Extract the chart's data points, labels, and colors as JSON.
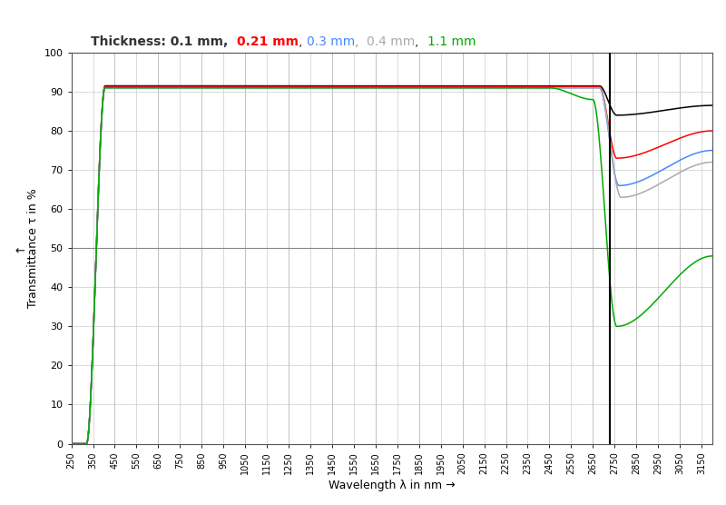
{
  "title_parts": [
    {
      "text": "Thickness: 0.1 mm,  ",
      "color": "#333333",
      "bold": true
    },
    {
      "text": "0.21 mm",
      "color": "#ff0000",
      "bold": true
    },
    {
      "text": ", ",
      "color": "#333333",
      "bold": false
    },
    {
      "text": "0.3 mm",
      "color": "#4488ff",
      "bold": false
    },
    {
      "text": ",  ",
      "color": "#999999",
      "bold": false
    },
    {
      "text": "0.4 mm",
      "color": "#aaaaaa",
      "bold": false
    },
    {
      "text": ",  ",
      "color": "#333333",
      "bold": false
    },
    {
      "text": "1.1 mm",
      "color": "#00aa00",
      "bold": false
    }
  ],
  "xlabel": "Wavelength λ in nm →",
  "ylabel": "Transmittance τ in %",
  "ylabel_arrow": "↑",
  "xlim": [
    250,
    3200
  ],
  "ylim": [
    0,
    100
  ],
  "xticks": [
    250,
    350,
    450,
    550,
    650,
    750,
    850,
    950,
    1050,
    1150,
    1250,
    1350,
    1450,
    1550,
    1650,
    1750,
    1850,
    1950,
    2050,
    2150,
    2250,
    2350,
    2450,
    2550,
    2650,
    2750,
    2850,
    2950,
    3050,
    3150
  ],
  "yticks": [
    0,
    10,
    20,
    30,
    40,
    50,
    60,
    70,
    80,
    90,
    100
  ],
  "major_yticks": [
    0,
    50,
    100
  ],
  "line_colors": [
    "#000000",
    "#ff0000",
    "#4488ff",
    "#aaaaaa",
    "#00aa00"
  ],
  "vertical_line_x": 2730,
  "background_color": "#ffffff",
  "grid_minor_color": "#cccccc",
  "grid_major_color": "#888888",
  "figsize": [
    8.0,
    5.56
  ],
  "dpi": 100
}
